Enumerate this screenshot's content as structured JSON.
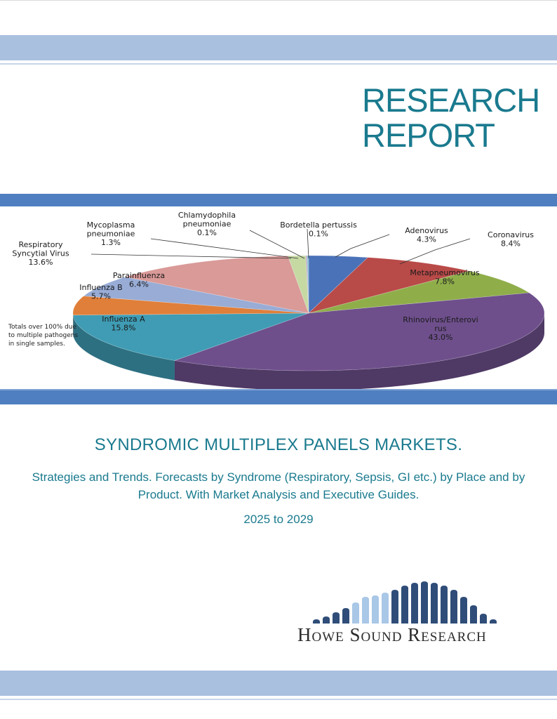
{
  "header": {
    "title_line1": "RESEARCH",
    "title_line2": "REPORT"
  },
  "colors": {
    "accent_teal": "#1a7a8e",
    "band_light": "#a9c0df",
    "band_dark": "#4f7fc0"
  },
  "chart_data": {
    "type": "pie",
    "title": "",
    "slices": [
      {
        "label": "Adenovirus",
        "value": 4.3,
        "value_label": "4.3%",
        "color": "#4a72b8"
      },
      {
        "label": "Coronavirus",
        "value": 8.4,
        "value_label": "8.4%",
        "color": "#b84a48"
      },
      {
        "label": "Metapneumovirus",
        "value": 7.8,
        "value_label": "7.8%",
        "color": "#8fae4a"
      },
      {
        "label": "Rhinovirus/Enterovirus",
        "value": 43.0,
        "value_label": "43.0%",
        "color": "#6e4f8c"
      },
      {
        "label": "Influenza A",
        "value": 15.8,
        "value_label": "15.8%",
        "color": "#3f9cb4"
      },
      {
        "label": "Influenza B",
        "value": 5.7,
        "value_label": "5.7%",
        "color": "#e07f3a"
      },
      {
        "label": "Parainfluenza",
        "value": 6.4,
        "value_label": "6.4%",
        "color": "#98acd6"
      },
      {
        "label": "Respiratory Syncytial Virus",
        "value": 13.6,
        "value_label": "13.6%",
        "color": "#d99a98"
      },
      {
        "label": "Mycoplasma pneumoniae",
        "value": 1.3,
        "value_label": "1.3%",
        "color": "#c6d9a3"
      },
      {
        "label": "Chlamydophila pneumoniae",
        "value": 0.1,
        "value_label": "0.1%",
        "color": "#b8a3cf"
      },
      {
        "label": "Bordetella pertussis",
        "value": 0.1,
        "value_label": "0.1%",
        "color": "#7dc0d3"
      }
    ],
    "labels": {
      "bordetella": [
        "Bordetella pertussis",
        "0.1%"
      ],
      "chlamydophila": [
        "Chlamydophila",
        "pneumoniae",
        "0.1%"
      ],
      "mycoplasma": [
        "Mycoplasma",
        "pneumoniae",
        "1.3%"
      ],
      "rsv": [
        "Respiratory",
        "Syncytial Virus",
        "13.6%"
      ],
      "adenovirus": [
        "Adenovirus",
        "4.3%"
      ],
      "coronavirus": [
        "Coronavirus",
        "8.4%"
      ],
      "metapneumovirus": [
        "Metapneumovirus",
        "7.8%"
      ],
      "parainfluenza": [
        "Parainfluenza",
        "6.4%"
      ],
      "influenzab": [
        "Influenza B",
        "5.7%"
      ],
      "influenzaa": [
        "Influenza A",
        "15.8%"
      ],
      "rhinovirus": [
        "Rhinovirus/Enterovi",
        "rus",
        "43.0%"
      ]
    },
    "note": "Totals over 100% due to multiple pathogens in single samples."
  },
  "document": {
    "main_title": "SYNDROMIC MULTIPLEX PANELS MARKETS.",
    "subtitle": "Strategies and Trends.  Forecasts by Syndrome (Respiratory, Sepsis, GI etc.) by Place and by Product.  With Market Analysis and Executive Guides.",
    "years": "2025 to 2029"
  },
  "logo": {
    "name": "Howe Sound Research"
  }
}
